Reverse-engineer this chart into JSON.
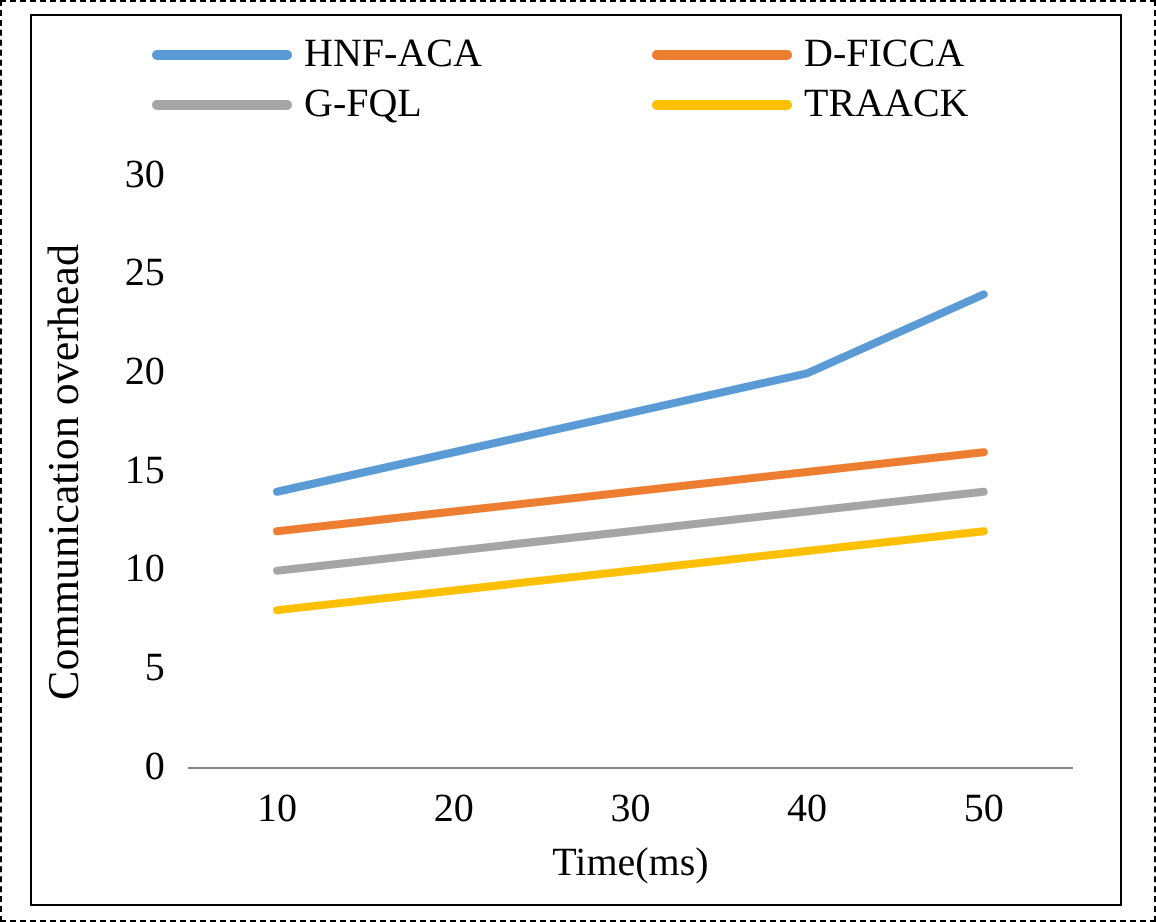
{
  "chart_data": {
    "type": "line",
    "xlabel": "Time(ms)",
    "ylabel": "Communication overhead",
    "categories": [
      "10",
      "20",
      "30",
      "40",
      "50"
    ],
    "series": [
      {
        "name": "HNF-ACA",
        "color": "#5b9bd5",
        "values": [
          14,
          16,
          18,
          20,
          24
        ]
      },
      {
        "name": "D-FICCA",
        "color": "#ed7d31",
        "values": [
          12,
          13,
          14,
          15,
          16
        ]
      },
      {
        "name": "G-FQL",
        "color": "#a5a5a5",
        "values": [
          10,
          11,
          12,
          13,
          14
        ]
      },
      {
        "name": "TRAACK",
        "color": "#ffc000",
        "values": [
          8,
          9,
          10,
          11,
          12
        ]
      }
    ],
    "ylim": [
      0,
      30
    ],
    "yticks": [
      0,
      5,
      10,
      15,
      20,
      25,
      30
    ],
    "grid": false,
    "legend": "top",
    "marker": "none",
    "line_style": "solid"
  }
}
